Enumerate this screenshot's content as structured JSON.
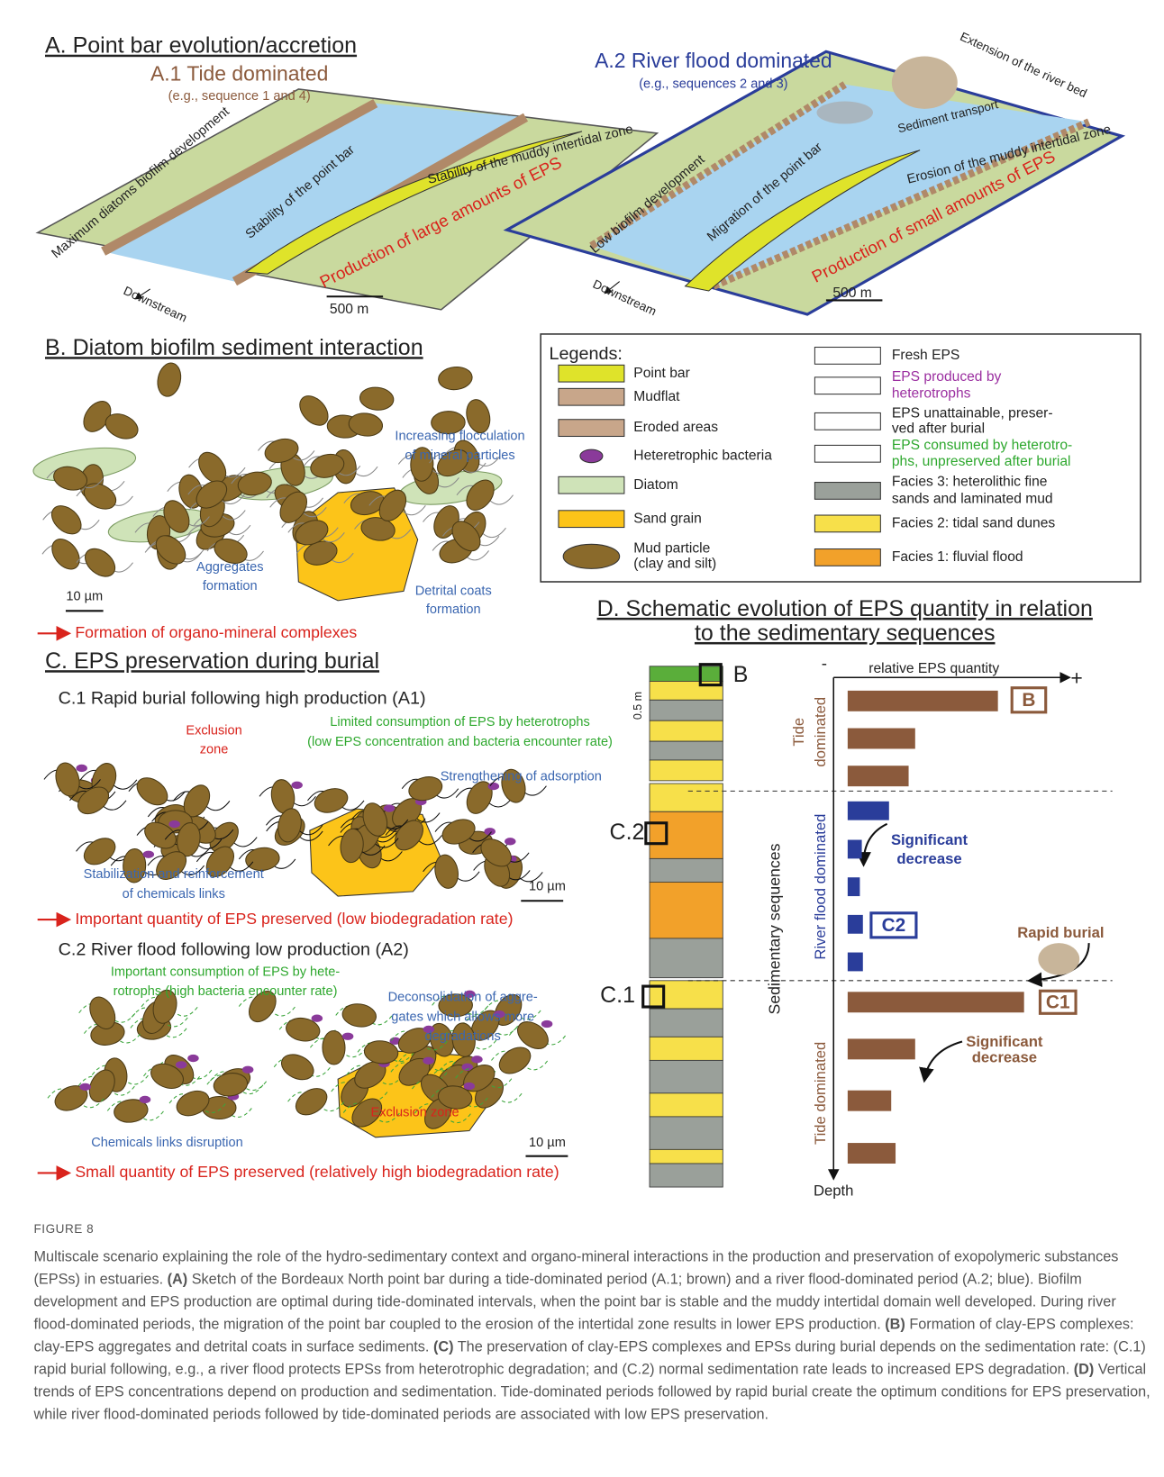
{
  "panel_a": {
    "title": "A. Point bar evolution/accretion",
    "a1": {
      "title": "A.1 Tide dominated",
      "subtitle": "(e.g., sequence 1 and 4)",
      "biofilm": "Maximum diatoms biofilm development",
      "point_bar": "Stability of the point bar",
      "intertidal": "Stability of the muddy intertidal zone",
      "eps": "Production of large amounts of EPS",
      "downstream": "Downstream",
      "scale": "500 m"
    },
    "a2": {
      "title": "A.2 River flood dominated",
      "subtitle": "(e.g., sequences 2 and 3)",
      "extension": "Extension of the river bed",
      "transport": "Sediment transport",
      "biofilm": "Low biofilm development",
      "point_bar": "Migration of the point bar",
      "intertidal": "Erosion of the muddy intertidal zone",
      "eps": "Production of small amounts of EPS",
      "downstream": "Downstream",
      "scale": "500 m"
    }
  },
  "panel_b": {
    "title": "B. Diatom biofilm sediment interaction",
    "flocculation": [
      "Increasing flocculation",
      "of mineral particles"
    ],
    "aggregates": [
      "Aggregates",
      "formation"
    ],
    "coats": [
      "Detrital coats",
      "formation"
    ],
    "scale": "10 µm",
    "result": "Formation of organo-mineral complexes"
  },
  "legend": {
    "title": "Legends:",
    "items": [
      [
        "Point bar"
      ],
      [
        "Mudflat"
      ],
      [
        "Eroded areas"
      ],
      [
        "Heteretrophic bacteria"
      ],
      [
        "Diatom"
      ],
      [
        "Sand grain"
      ],
      [
        "Mud particle",
        "(clay and silt)"
      ],
      [
        "Fresh EPS"
      ],
      [
        "EPS produced by",
        "heterotrophs"
      ],
      [
        "EPS unattainable, preser-",
        "ved after burial"
      ],
      [
        "EPS consumed by heterotro-",
        "phs, unpreserved after burial"
      ],
      [
        "Facies 3: heterolithic fine",
        "sands and laminated mud"
      ],
      [
        "Facies 2: tidal sand dunes"
      ],
      [
        "Facies 1: fluvial flood"
      ]
    ]
  },
  "panel_c": {
    "title": "C. EPS preservation during burial",
    "c1": {
      "title": "C.1 Rapid burial following high production (A1)",
      "exclusion": [
        "Exclusion",
        "zone"
      ],
      "limited": [
        "Limited consumption of EPS by heterotrophs",
        "(low EPS concentration and bacteria encounter rate)"
      ],
      "strengthening": "Strengthening of adsorption",
      "stabilization": [
        "Stabilization and reinforcement",
        "of chemicals links"
      ],
      "scale": "10 µm",
      "result": "Important quantity of EPS preserved (low biodegradation rate)"
    },
    "c2": {
      "title": "C.2 River flood following low production (A2)",
      "consumption": [
        "Important consumption of EPS by hete-",
        "rotrophs (high bacteria encounter rate)"
      ],
      "deconsolidation": [
        "Deconsolidation of aggre-",
        "gates which allows more",
        "degradations"
      ],
      "exclusion": "Exclusion zone",
      "disruption": "Chemicals links disruption",
      "scale": "10 µm",
      "result": "Small quantity of EPS preserved (relatively high biodegradation rate)"
    }
  },
  "panel_d": {
    "title": [
      "D. Schematic evolution of EPS quantity in relation",
      "to the sedimentary sequences"
    ],
    "column_labels": {
      "b": "B",
      "c2": "C.2",
      "c1": "C.1",
      "thickness": "0.5 m"
    },
    "chart_data": {
      "type": "bar",
      "orientation": "horizontal",
      "x_label": "relative EPS quantity",
      "x_min_label": "-",
      "x_max_label": "+",
      "y_label": "Depth",
      "group_axis_label": "Sedimentary sequences",
      "xlim": [
        0,
        1
      ],
      "series": [
        {
          "name": [
            "Tide",
            "dominated"
          ],
          "color": "#8b5a3c",
          "values": [
            0.69,
            0.31,
            0.28
          ]
        },
        {
          "name": [
            "River flood dominated"
          ],
          "color": "#2a3d9a",
          "values": [
            0.19,
            0.065,
            0.056,
            0.07,
            0.07
          ]
        },
        {
          "name": [
            "Tide dominated"
          ],
          "color": "#8b5a3c",
          "values": [
            0.81,
            0.31,
            0.2,
            0.22
          ]
        }
      ],
      "annotations": {
        "b": "B",
        "c2": "C2",
        "c1": "C1",
        "decrease_1": [
          "Significant",
          "decrease"
        ],
        "decrease_2": [
          "Significant",
          "decrease"
        ],
        "rapid_burial": "Rapid burial"
      }
    }
  },
  "caption": {
    "label": "FIGURE 8",
    "parts": [
      "Multiscale scenario explaining the role of the hydro-sedimentary context and organo-mineral interactions in the production and preservation of exopolymeric substances (EPSs) in estuaries. ",
      "(A)",
      " Sketch of the Bordeaux North point bar during a tide-dominated period (A.1; brown) and a river flood-dominated period (A.2; blue). Biofilm development and EPS production are optimal during tide-dominated intervals, when the point bar is stable and the muddy intertidal domain well developed. During river flood-dominated periods, the migration of the point bar coupled to the erosion of the intertidal zone results in lower EPS production. ",
      "(B)",
      " Formation of clay-EPS complexes: clay-EPS aggregates and detrital coats in surface sediments. ",
      "(C)",
      " The preservation of clay-EPS complexes and EPSs during burial depends on the sedimentation rate: (C.1) rapid burial following, e.g., a river flood protects EPSs from heterotrophic degradation; and (C.2) normal sedimentation rate leads to increased EPS degradation. ",
      "(D)",
      " Vertical trends of EPS concentrations depend on production and sedimentation. Tide-dominated periods followed by rapid burial create the optimum conditions for EPS preservation, while river flood-dominated periods followed by tide-dominated periods are associated with low EPS preservation."
    ]
  }
}
